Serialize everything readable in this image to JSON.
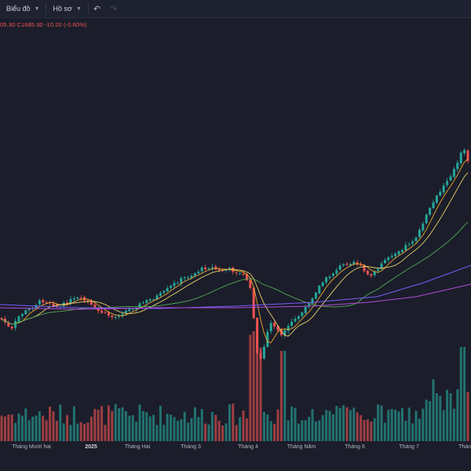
{
  "toolbar": {
    "chart_menu_label": "Biểu đồ",
    "profile_menu_label": "Hồ sơ",
    "undo_icon": "undo-icon",
    "redo_icon": "redo-icon"
  },
  "legend": {
    "ohlc_text": "05.30  C1685.30  -10.20 (-0.60%)"
  },
  "colors": {
    "background": "#1b1d2a",
    "up": "#26a69a",
    "down": "#ef5350",
    "ma_fast": "#f0a830",
    "ma_mid": "#e8d06a",
    "ma_slow": "#55a855",
    "ma_long1": "#7b5cff",
    "ma_long2": "#b04cd6"
  },
  "x_axis": {
    "ticks": [
      "Tháng Mười hai",
      "2025",
      "Tháng Hai",
      "Tháng 3",
      "Tháng 4",
      "Tháng Năm",
      "Tháng 6",
      "Tháng 7",
      "Tháng"
    ]
  },
  "chart_data": {
    "type": "candlestick",
    "last_close": 1685.3,
    "change": -10.2,
    "change_pct": -0.6,
    "indicators": [
      "moving-average-fast",
      "moving-average-mid",
      "moving-average-slow",
      "moving-average-long-1",
      "moving-average-long-2",
      "volume"
    ]
  }
}
